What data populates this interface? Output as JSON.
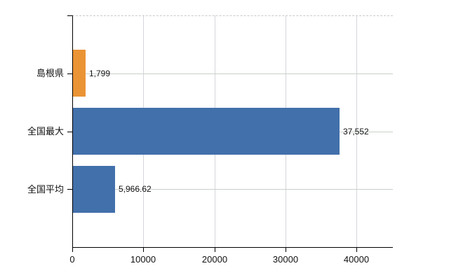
{
  "chart_data": {
    "type": "bar",
    "orientation": "horizontal",
    "title": "",
    "xlabel": "",
    "ylabel": "",
    "categories": [
      "島根県",
      "全国最大",
      "全国平均"
    ],
    "values": [
      1799,
      37552,
      5966.62
    ],
    "value_labels": [
      "1,799",
      "37,552",
      "5,966.62"
    ],
    "bar_colors": [
      "#ed953b",
      "#4270ab",
      "#4270ab"
    ],
    "bar_dither_colors": [
      [
        "#f2a14b",
        "#e3861f"
      ],
      [
        "#4a7ab4",
        "#3a66a2"
      ],
      [
        "#4a7ab4",
        "#3a66a2"
      ]
    ],
    "x_ticks": {
      "values": [
        0,
        10000,
        20000,
        30000,
        40000
      ],
      "labels": [
        "0",
        "10000",
        "20000",
        "30000",
        "40000"
      ]
    },
    "xlim": [
      0,
      45100
    ],
    "grid": {
      "vertical": true,
      "horizontal_at_categories": true,
      "top_border_dashed": true
    },
    "legend": "none",
    "colors": {
      "axis": "#000000",
      "grid_vertical": "#d6d6dc",
      "grid_horizontal": "#c9d0c9",
      "top_border": "#c8c8c8",
      "text": "#111111",
      "background": "#ffffff"
    }
  }
}
